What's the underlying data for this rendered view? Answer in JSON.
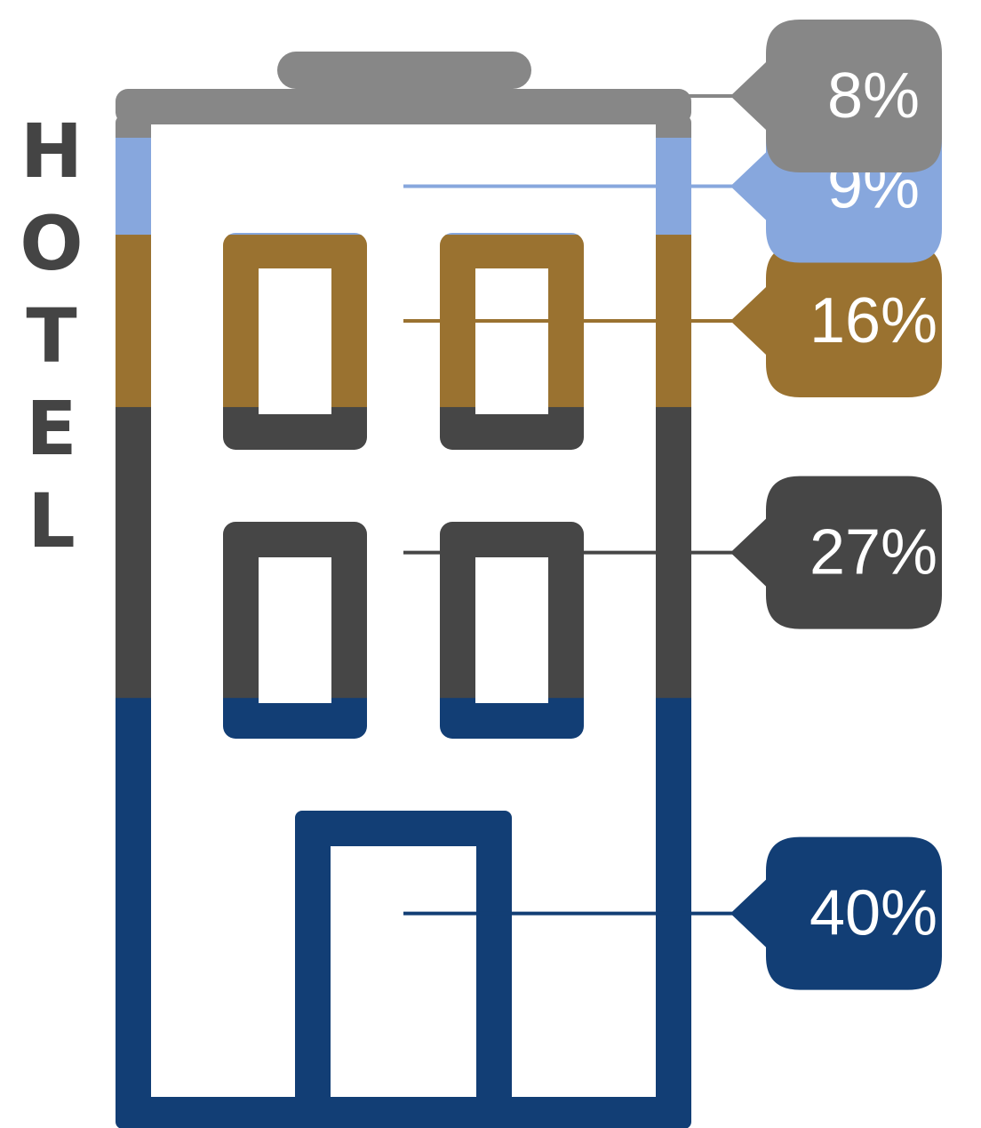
{
  "chart_data": {
    "type": "pictorial-stacked-bar",
    "title": "HOTEL",
    "units": "%",
    "segments": [
      {
        "label": "8%",
        "value": 8,
        "color": "#878787"
      },
      {
        "label": "9%",
        "value": 9,
        "color": "#87A7DD"
      },
      {
        "label": "16%",
        "value": 16,
        "color": "#9A7230"
      },
      {
        "label": "27%",
        "value": 27,
        "color": "#464646"
      },
      {
        "label": "40%",
        "value": 40,
        "color": "#123E75"
      }
    ],
    "stack_order": "top-to-bottom"
  }
}
